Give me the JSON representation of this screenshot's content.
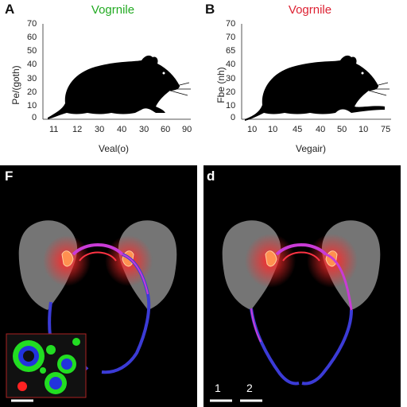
{
  "panels": {
    "a": {
      "letter": "A",
      "title": "Vogrnile",
      "title_color": "#22aa22",
      "ylabel": "Pe/(goth)",
      "xlabel": "Veal(o)",
      "yticks": [
        "70",
        "60",
        "50",
        "40",
        "30",
        "20",
        "10",
        "0"
      ],
      "xticks": [
        "11",
        "12",
        "30",
        "40",
        "30",
        "60",
        "90"
      ]
    },
    "b": {
      "letter": "B",
      "title": "Vogrnile",
      "title_color": "#dd2233",
      "ylabel": "Fbe (nh)",
      "xlabel": "Vegair)",
      "yticks": [
        "70",
        "70",
        "65",
        "40",
        "30",
        "20",
        "10",
        "0"
      ],
      "xticks": [
        "10",
        "10",
        "45",
        "40",
        "50",
        "10",
        "75"
      ]
    },
    "f": {
      "letter": "F",
      "inset": "fluorescence-micrograph"
    },
    "d": {
      "letter": "d",
      "scale_labels": [
        "1",
        "2"
      ]
    }
  },
  "colors": {
    "silhouette": "#000000",
    "organ_fill": "#8a8a8a",
    "glow": "#ff2a2a",
    "vessel_blue": "#3b3bd6",
    "vessel_magenta": "#c93bd6",
    "inset_green": "#22dd22",
    "inset_blue": "#2233dd"
  },
  "icons": [
    "mouse-silhouette",
    "organ-pair",
    "vessel-loop",
    "scale-bar"
  ]
}
